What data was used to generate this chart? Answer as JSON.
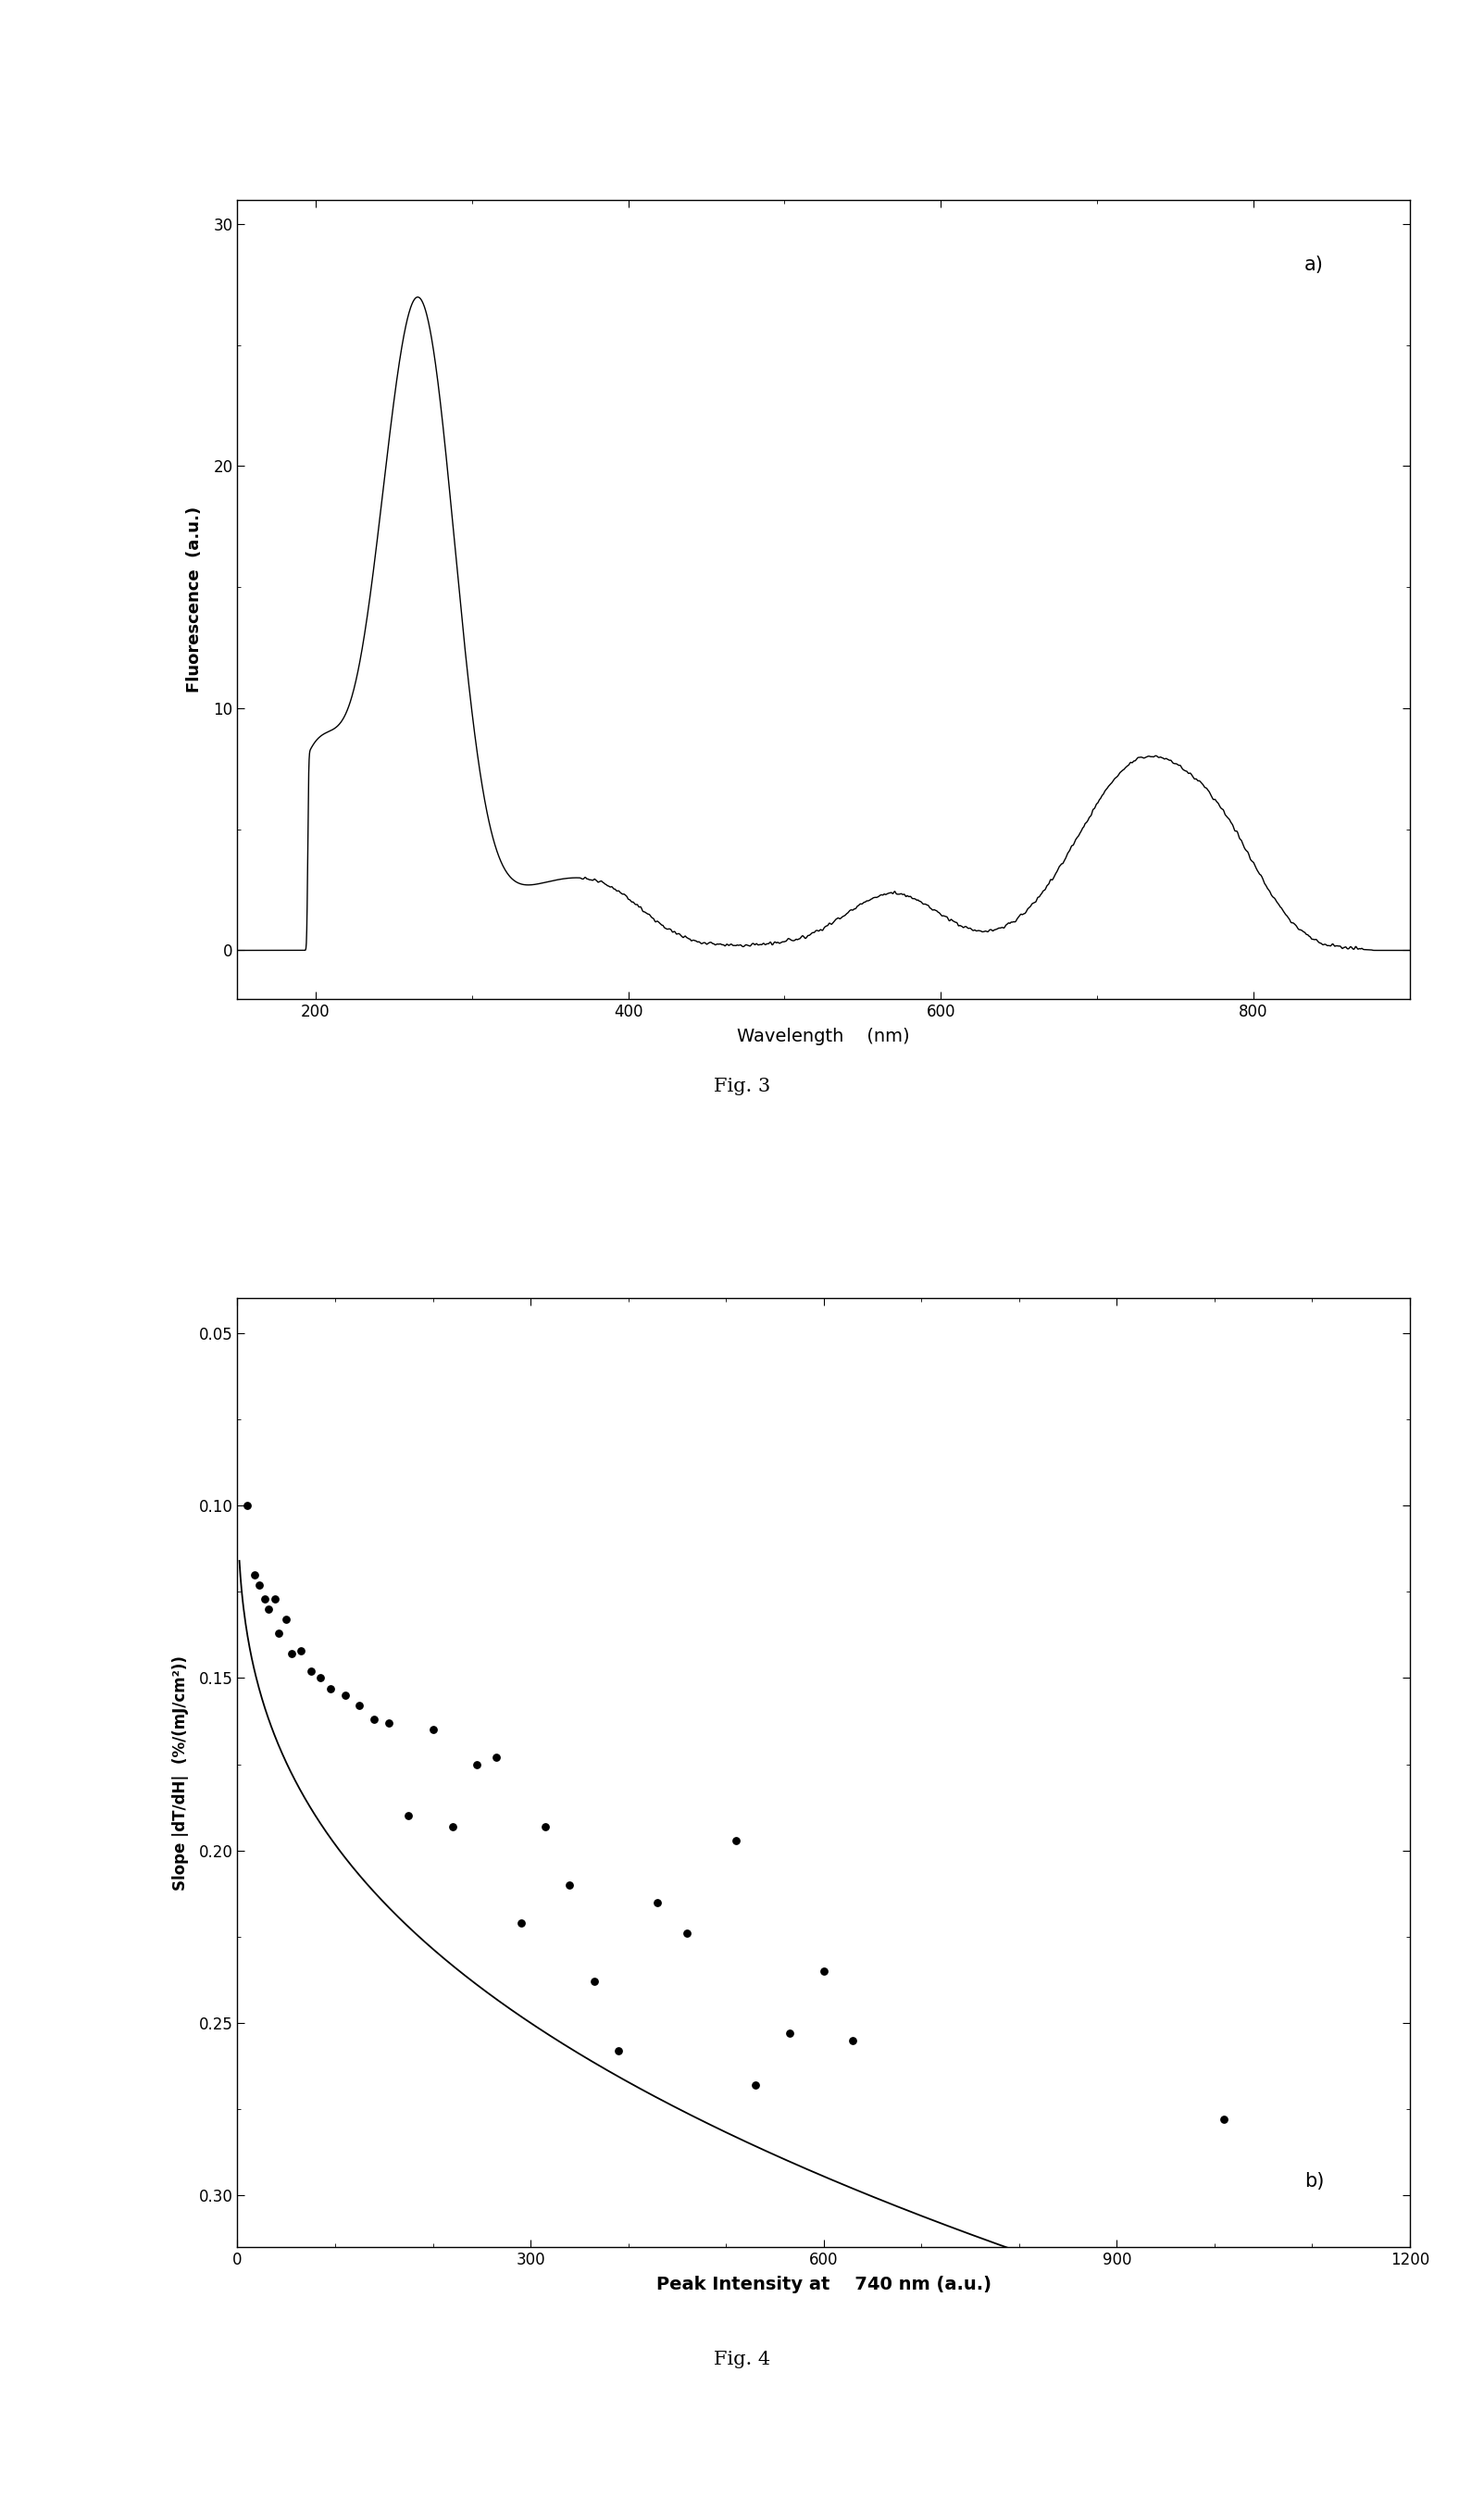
{
  "fig3": {
    "title": "a)",
    "xlabel": "Wavelength    (nm)",
    "ylabel": "Fluorescence  (a.u.)",
    "xlim": [
      150,
      900
    ],
    "ylim": [
      -2,
      31
    ],
    "yticks": [
      0,
      10,
      20,
      30
    ],
    "xticks": [
      200,
      400,
      600,
      800
    ]
  },
  "fig4": {
    "title": "b)",
    "xlabel": "Peak Intensity at    740 nm (a.u.)",
    "ylabel": "Slope |dT/dH|  (%/(mJ/cm²))",
    "xlim": [
      0,
      1200
    ],
    "ylim": [
      0.315,
      0.04
    ],
    "yticks": [
      0.05,
      0.1,
      0.15,
      0.2,
      0.25,
      0.3
    ],
    "xticks": [
      0,
      300,
      600,
      900,
      1200
    ],
    "scatter_x": [
      10,
      18,
      22,
      28,
      32,
      38,
      42,
      50,
      55,
      65,
      75,
      85,
      95,
      110,
      125,
      140,
      155,
      175,
      200,
      220,
      245,
      265,
      290,
      315,
      340,
      365,
      390,
      430,
      460,
      510,
      530,
      565,
      600,
      630,
      1010
    ],
    "scatter_y": [
      0.1,
      0.12,
      0.123,
      0.127,
      0.13,
      0.127,
      0.137,
      0.133,
      0.143,
      0.142,
      0.148,
      0.15,
      0.153,
      0.155,
      0.158,
      0.162,
      0.163,
      0.19,
      0.165,
      0.193,
      0.175,
      0.173,
      0.221,
      0.193,
      0.21,
      0.238,
      0.258,
      0.215,
      0.224,
      0.197,
      0.268,
      0.253,
      0.235,
      0.255,
      0.278
    ]
  },
  "fig3_caption": "Fig. 3",
  "fig4_caption": "Fig. 4",
  "background_color": "#ffffff",
  "line_color": "#000000"
}
